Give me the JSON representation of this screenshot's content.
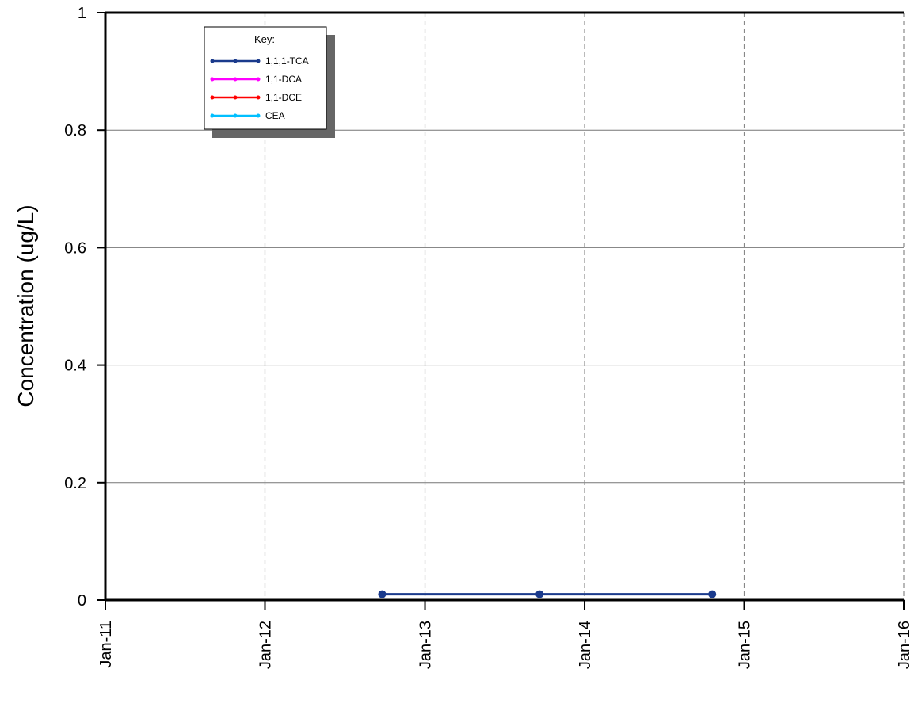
{
  "chart_data": {
    "type": "line",
    "ylabel": "Concentration (ug/L)",
    "ylim": [
      0,
      1
    ],
    "y_ticks": [
      "0",
      "0.2",
      "0.4",
      "0.6",
      "0.8",
      "1"
    ],
    "x_ticks": [
      "Jan-11",
      "Jan-12",
      "Jan-13",
      "Jan-14",
      "Jan-15",
      "Jan-16"
    ],
    "xlim": [
      "2011-01-01",
      "2016-01-01"
    ],
    "grid": {
      "horizontal": "solid",
      "vertical": "dashed"
    },
    "legend": {
      "title": "Key:",
      "placement": "top-left",
      "entries": [
        "1,1,1-TCA",
        "1,1-DCA",
        "1,1-DCE",
        "CEA"
      ]
    },
    "series": [
      {
        "name": "1,1,1-TCA",
        "color": "#1a3a8c",
        "points": [
          {
            "x": "2012-09-25",
            "y": 0.01
          },
          {
            "x": "2013-09-20",
            "y": 0.01
          },
          {
            "x": "2014-10-20",
            "y": 0.01
          }
        ]
      },
      {
        "name": "1,1-DCA",
        "color": "#ff00ff",
        "points": []
      },
      {
        "name": "1,1-DCE",
        "color": "#ff0000",
        "points": []
      },
      {
        "name": "CEA",
        "color": "#00bfff",
        "points": []
      }
    ]
  }
}
